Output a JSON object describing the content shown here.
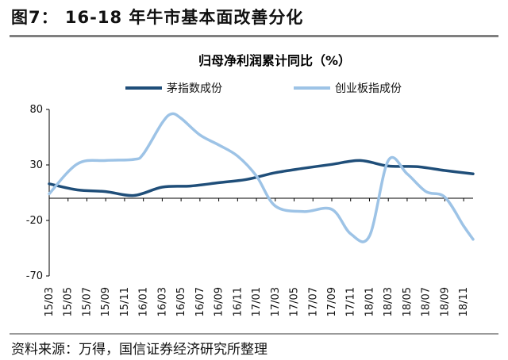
{
  "figure_title": "图7：  16-18 年牛市基本面改善分化",
  "source": "资料来源：万得，国信证券经济研究所整理",
  "chart_data": {
    "type": "line",
    "title": "归母净利润累计同比（%）",
    "xlabel": "",
    "ylabel": "",
    "ylim": [
      -70,
      80
    ],
    "yticks": [
      80,
      30,
      -20,
      -70
    ],
    "x": [
      "15/03",
      "15/04",
      "15/05",
      "15/06",
      "15/07",
      "15/08",
      "15/09",
      "15/10",
      "15/11",
      "15/12",
      "16/01",
      "16/02",
      "16/03",
      "16/04",
      "16/05",
      "16/06",
      "16/07",
      "16/08",
      "16/09",
      "16/10",
      "16/11",
      "16/12",
      "17/01",
      "17/02",
      "17/03",
      "17/04",
      "17/05",
      "17/06",
      "17/07",
      "17/08",
      "17/09",
      "17/10",
      "17/11",
      "17/12",
      "18/01",
      "18/02",
      "18/03",
      "18/04",
      "18/05",
      "18/06",
      "18/07",
      "18/08",
      "18/09",
      "18/10",
      "18/11",
      "18/12"
    ],
    "xtick_labels": [
      "15/03",
      "15/05",
      "15/07",
      "15/09",
      "15/11",
      "16/01",
      "16/03",
      "16/05",
      "16/07",
      "16/09",
      "16/11",
      "17/01",
      "17/03",
      "17/05",
      "17/07",
      "17/09",
      "17/11",
      "18/01",
      "18/03",
      "18/05",
      "18/07",
      "18/09",
      "18/11"
    ],
    "series": [
      {
        "name": "茅指数成份",
        "color": "#1f4e79",
        "values": [
          [
            0,
            13
          ],
          [
            3,
            7.5
          ],
          [
            6,
            6
          ],
          [
            9,
            2.5
          ],
          [
            12,
            10
          ],
          [
            15,
            11
          ],
          [
            18,
            14
          ],
          [
            21,
            17
          ],
          [
            24,
            23
          ],
          [
            27,
            27
          ],
          [
            30,
            30.5
          ],
          [
            33,
            34
          ],
          [
            36,
            29
          ],
          [
            39,
            28.5
          ],
          [
            42,
            25
          ],
          [
            45,
            22
          ]
        ]
      },
      {
        "name": "创业板指成份",
        "color": "#9dc3e6",
        "values": [
          [
            0,
            4
          ],
          [
            3,
            31
          ],
          [
            6,
            34
          ],
          [
            9,
            35
          ],
          [
            10,
            40
          ],
          [
            12,
            68
          ],
          [
            13,
            76
          ],
          [
            14,
            72
          ],
          [
            16,
            57
          ],
          [
            18,
            48
          ],
          [
            20,
            38
          ],
          [
            22,
            20
          ],
          [
            24,
            -7
          ],
          [
            27,
            -12
          ],
          [
            30,
            -10
          ],
          [
            32,
            -32
          ],
          [
            34,
            -34
          ],
          [
            36,
            34
          ],
          [
            38,
            22
          ],
          [
            40,
            6
          ],
          [
            42,
            1
          ],
          [
            44,
            -25
          ],
          [
            45,
            -37
          ]
        ]
      }
    ],
    "legend_position": "top",
    "grid": false
  }
}
